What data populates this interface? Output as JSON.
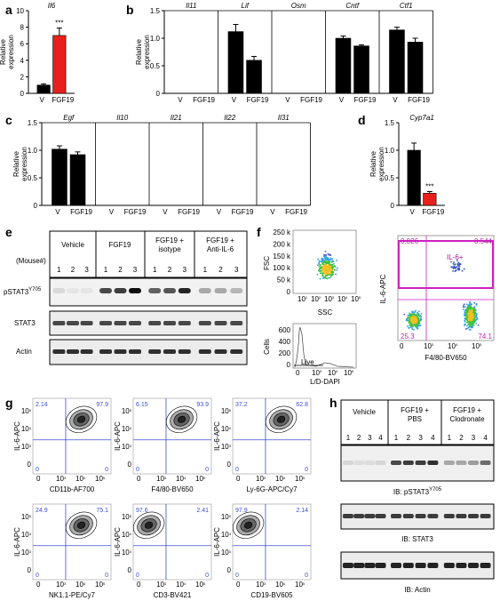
{
  "panels": {
    "a": {
      "letter": "a"
    },
    "b": {
      "letter": "b"
    },
    "c": {
      "letter": "c"
    },
    "d": {
      "letter": "d"
    },
    "e": {
      "letter": "e"
    },
    "f": {
      "letter": "f"
    },
    "g": {
      "letter": "g"
    },
    "h": {
      "letter": "h"
    }
  },
  "chart_data": [
    {
      "type": "bar",
      "panel": "a",
      "ylabel": "Relative expression",
      "groups": [
        {
          "gene": "Il6",
          "categories": [
            "V",
            "FGF19"
          ],
          "values": [
            1.0,
            7.0
          ],
          "errors": [
            0.15,
            0.9
          ],
          "colors": [
            "#000000",
            "#e8201c"
          ]
        }
      ],
      "ylim": [
        0,
        10
      ],
      "yticks": [
        "0",
        "2",
        "4",
        "6",
        "8",
        "10"
      ],
      "annotation": "***"
    },
    {
      "type": "bar",
      "panel": "b",
      "ylabel": "Relative expression",
      "groups": [
        {
          "gene": "Il11",
          "categories": [
            "V",
            "FGF19"
          ],
          "values": [
            0,
            0
          ],
          "errors": [
            0,
            0
          ],
          "colors": [
            "#000000",
            "#000000"
          ]
        },
        {
          "gene": "Lif",
          "categories": [
            "V",
            "FGF19"
          ],
          "values": [
            1.12,
            0.6
          ],
          "errors": [
            0.13,
            0.07
          ],
          "colors": [
            "#000000",
            "#000000"
          ]
        },
        {
          "gene": "Osm",
          "categories": [
            "V",
            "FGF19"
          ],
          "values": [
            0,
            0
          ],
          "errors": [
            0,
            0
          ],
          "colors": [
            "#000000",
            "#000000"
          ]
        },
        {
          "gene": "Cntf",
          "categories": [
            "V",
            "FGF19"
          ],
          "values": [
            1.0,
            0.86
          ],
          "errors": [
            0.04,
            0.02
          ],
          "colors": [
            "#000000",
            "#000000"
          ]
        },
        {
          "gene": "Ctf1",
          "categories": [
            "V",
            "FGF19"
          ],
          "values": [
            1.15,
            0.93
          ],
          "errors": [
            0.05,
            0.07
          ],
          "colors": [
            "#000000",
            "#000000"
          ]
        }
      ],
      "ylim": [
        0,
        1.5
      ],
      "yticks": [
        "0",
        "0.5",
        "1.0",
        "1.5"
      ]
    },
    {
      "type": "bar",
      "panel": "c",
      "ylabel": "Relative expression",
      "groups": [
        {
          "gene": "Egf",
          "categories": [
            "V",
            "FGF19"
          ],
          "values": [
            1.02,
            0.92
          ],
          "errors": [
            0.06,
            0.05
          ],
          "colors": [
            "#000000",
            "#000000"
          ]
        },
        {
          "gene": "Il10",
          "categories": [
            "V",
            "FGF19"
          ],
          "values": [
            0,
            0
          ],
          "errors": [
            0,
            0
          ],
          "colors": [
            "#000000",
            "#000000"
          ]
        },
        {
          "gene": "Il21",
          "categories": [
            "V",
            "FGF19"
          ],
          "values": [
            0,
            0
          ],
          "errors": [
            0,
            0
          ],
          "colors": [
            "#000000",
            "#000000"
          ]
        },
        {
          "gene": "Il22",
          "categories": [
            "V",
            "FGF19"
          ],
          "values": [
            0,
            0
          ],
          "errors": [
            0,
            0
          ],
          "colors": [
            "#000000",
            "#000000"
          ]
        },
        {
          "gene": "Il31",
          "categories": [
            "V",
            "FGF19"
          ],
          "values": [
            0,
            0
          ],
          "errors": [
            0,
            0
          ],
          "colors": [
            "#000000",
            "#000000"
          ]
        }
      ],
      "ylim": [
        0,
        1.5
      ],
      "yticks": [
        "0",
        "0.5",
        "1.0",
        "1.5"
      ]
    },
    {
      "type": "bar",
      "panel": "d",
      "ylabel": "Relative expression",
      "groups": [
        {
          "gene": "Cyp7a1",
          "categories": [
            "V",
            "FGF19"
          ],
          "values": [
            1.0,
            0.22
          ],
          "errors": [
            0.13,
            0.03
          ],
          "colors": [
            "#000000",
            "#e8201c"
          ]
        }
      ],
      "ylim": [
        0,
        1.5
      ],
      "yticks": [
        "0",
        "0.5",
        "1.0",
        "1.5"
      ],
      "annotation": "***"
    }
  ],
  "blot_e": {
    "groups": [
      "Vehicle",
      "FGF19",
      "FGF19 +",
      "isotype",
      "FGF19 +",
      "Anti-IL-6"
    ],
    "mouse_label": "(Mouse#)",
    "lanes": [
      "1",
      "2",
      "3"
    ],
    "rows": [
      "pSTAT3",
      "Y705",
      "STAT3",
      "Actin"
    ]
  },
  "flow_f": {
    "fsc": "FSC",
    "ssc": "SSC",
    "fsc_ticks": [
      "250 k",
      "200 k",
      "150 k",
      "100 k",
      "50 k",
      "0"
    ],
    "ssc_ticks": [
      "10",
      "10",
      "10",
      "10",
      "10"
    ],
    "exps": [
      "0",
      "1",
      "2",
      "3",
      "4",
      "5"
    ],
    "cells": "Cells",
    "cells_ticks": [
      "600",
      "400",
      "200",
      "0"
    ],
    "live": "Live",
    "ld": "L/D-DAPI",
    "il6": "IL-6-APC",
    "f480": "F4/80-BV650",
    "gate": "IL-6+",
    "quads": [
      "0.026",
      "0.544",
      "25.3",
      "74.1"
    ]
  },
  "flow_g": {
    "ylabel": "IL-6-APC",
    "plots": [
      {
        "x": "CD11b-AF700",
        "quads": [
          "2.14",
          "97.9",
          "0",
          "0"
        ]
      },
      {
        "x": "F4/80-BV650",
        "quads": [
          "6.15",
          "93.9",
          "0",
          "0"
        ]
      },
      {
        "x": "Ly-6G-APC/Cy7",
        "quads": [
          "37.2",
          "62.8",
          "0",
          "0"
        ]
      },
      {
        "x": "NK1.1-PE/Cy7",
        "quads": [
          "24.9",
          "75.1",
          "0",
          "0"
        ]
      },
      {
        "x": "CD3-BV421",
        "quads": [
          "97.6",
          "2.41",
          "0",
          "0"
        ]
      },
      {
        "x": "CD19-BV605",
        "quads": [
          "97.9",
          "2.14",
          "0",
          "0"
        ]
      }
    ]
  },
  "blot_h": {
    "groups": [
      "Vehicle",
      "FGF19 +",
      "PBS",
      "FGF19 +",
      "Clodronate"
    ],
    "lanes": [
      "1",
      "2",
      "3",
      "4"
    ],
    "ib1": "IB: pSTAT3",
    "ib1_sup": "Y705",
    "ib2": "IB: STAT3",
    "ib3": "IB: Actin"
  }
}
